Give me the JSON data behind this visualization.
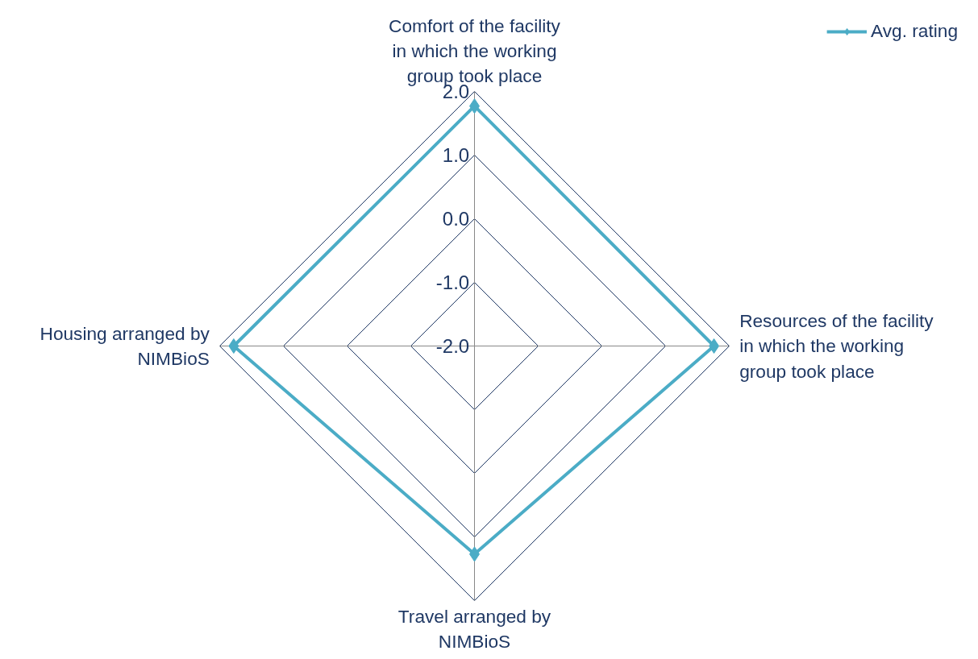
{
  "chart_data": {
    "type": "radar",
    "categories": [
      "Comfort of the facility in which the working group took place",
      "Resources of the facility in which the working group took place",
      "Travel arranged by NIMBioS",
      "Housing arranged by NIMBioS"
    ],
    "series": [
      {
        "name": "Avg. rating",
        "color": "#4bacc6",
        "values": [
          1.77,
          1.76,
          1.27,
          1.78
        ]
      }
    ],
    "ylim": [
      -2,
      2
    ],
    "yticks": [
      {
        "value": -2,
        "label": "-2.0"
      },
      {
        "value": -1,
        "label": "-1.0"
      },
      {
        "value": 0,
        "label": "0.0"
      },
      {
        "value": 1,
        "label": "1.0"
      },
      {
        "value": 2,
        "label": "2.0"
      }
    ],
    "grid": true,
    "legend": "top right",
    "marker": "diamond"
  }
}
